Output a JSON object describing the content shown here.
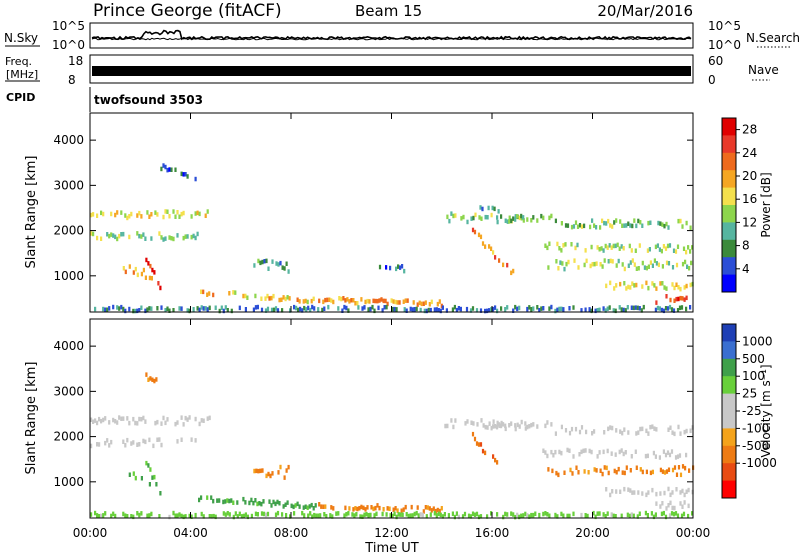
{
  "header": {
    "station": "Prince George (fitACF)",
    "beam": "Beam 15",
    "date": "20/Mar/2016"
  },
  "noise_panel": {
    "left_label": "N.Sky",
    "right_label": "N.Search",
    "left_ticks": [
      "10^5",
      "10^0"
    ],
    "right_ticks": [
      "10^5",
      "10^0"
    ]
  },
  "freq_panel": {
    "left_label_line1": "Freq.",
    "left_label_line2": "[MHz]",
    "right_label": "Nave",
    "left_ticks": [
      "18",
      "8"
    ],
    "right_ticks": [
      "60",
      "0"
    ]
  },
  "cpid": {
    "label": "CPID",
    "program": "twofsound 3503"
  },
  "colors": {
    "power_scale": [
      "#0000ff",
      "#2b4ed6",
      "#3b8a3b",
      "#56b5a0",
      "#8dd54c",
      "#f4e04d",
      "#f5a623",
      "#ee6a1d",
      "#e8392a",
      "#e00000"
    ],
    "velocity_scale": [
      "#1e3fb5",
      "#3a6fd0",
      "#3fa04a",
      "#68cf3a",
      "#c8c8c8",
      "#c8c8c8",
      "#f4a31b",
      "#ee7b13",
      "#e84b12",
      "#ff0000"
    ],
    "ground_scatter": "#c8c8c8"
  },
  "chart_data": [
    {
      "type": "heatmap",
      "title": "Power",
      "xlabel": "Time UT",
      "ylabel": "Slant Range [km]",
      "xlim": [
        0,
        24
      ],
      "ylim": [
        200,
        4600
      ],
      "x_ticks": [
        "00:00",
        "04:00",
        "08:00",
        "12:00",
        "16:00",
        "20:00",
        "00:00"
      ],
      "y_ticks": [
        "1000",
        "2000",
        "3000",
        "4000"
      ],
      "colorbar": {
        "label": "Power [dB]",
        "ticks": [
          "4",
          "8",
          "12",
          "16",
          "20",
          "24",
          "28"
        ],
        "range": [
          0,
          30
        ]
      },
      "features": [
        {
          "t": [
            0.0,
            4.8
          ],
          "r": [
            2350,
            2350
          ],
          "w": 160,
          "v": 16
        },
        {
          "t": [
            0.0,
            4.3
          ],
          "r": [
            1870,
            1870
          ],
          "w": 150,
          "v": 13
        },
        {
          "t": [
            1.3,
            2.5
          ],
          "r": [
            1150,
            1000
          ],
          "w": 220,
          "v": 20
        },
        {
          "t": [
            2.2,
            2.8
          ],
          "r": [
            1400,
            750
          ],
          "w": 120,
          "v": 26
        },
        {
          "t": [
            2.8,
            4.2
          ],
          "r": [
            3400,
            3200
          ],
          "w": 120,
          "v": 6
        },
        {
          "t": [
            4.3,
            9.0
          ],
          "r": [
            650,
            450
          ],
          "w": 100,
          "v": 18
        },
        {
          "t": [
            6.5,
            8.0
          ],
          "r": [
            1250,
            1200
          ],
          "w": 260,
          "v": 9
        },
        {
          "t": [
            9.0,
            14.0
          ],
          "r": [
            480,
            380
          ],
          "w": 110,
          "v": 20
        },
        {
          "t": [
            11.5,
            12.5
          ],
          "r": [
            1150,
            1150
          ],
          "w": 180,
          "v": 6
        },
        {
          "t": [
            14.1,
            17.3
          ],
          "r": [
            2300,
            2250
          ],
          "w": 180,
          "v": 12
        },
        {
          "t": [
            15.2,
            16.8
          ],
          "r": [
            2000,
            1050
          ],
          "w": 170,
          "v": 21
        },
        {
          "t": [
            15.5,
            16.3
          ],
          "r": [
            2550,
            2400
          ],
          "w": 110,
          "v": 8
        },
        {
          "t": [
            16.0,
            18.5
          ],
          "r": [
            2250,
            2300
          ],
          "w": 120,
          "v": 11
        },
        {
          "t": [
            18.5,
            24.0
          ],
          "r": [
            2150,
            2150
          ],
          "w": 170,
          "v": 12
        },
        {
          "t": [
            18.0,
            24.0
          ],
          "r": [
            1650,
            1600
          ],
          "w": 150,
          "v": 14
        },
        {
          "t": [
            18.2,
            24.0
          ],
          "r": [
            1250,
            1250
          ],
          "w": 200,
          "v": 14
        },
        {
          "t": [
            20.5,
            24.0
          ],
          "r": [
            780,
            780
          ],
          "w": 140,
          "v": 17
        },
        {
          "t": [
            22.5,
            24.0
          ],
          "r": [
            480,
            480
          ],
          "w": 150,
          "v": 25
        },
        {
          "t": [
            0.0,
            24.0
          ],
          "r": [
            270,
            270
          ],
          "w": 90,
          "v": 7
        }
      ]
    },
    {
      "type": "heatmap",
      "title": "Velocity",
      "xlabel": "Time UT",
      "ylabel": "Slant Range [km]",
      "xlim": [
        0,
        24
      ],
      "ylim": [
        200,
        4600
      ],
      "x_ticks": [
        "00:00",
        "04:00",
        "08:00",
        "12:00",
        "16:00",
        "20:00",
        "00:00"
      ],
      "y_ticks": [
        "1000",
        "2000",
        "3000",
        "4000"
      ],
      "colorbar": {
        "label": "Velocity [m s^-1]",
        "ticks": [
          "1000",
          "500",
          "100",
          "25",
          "-25",
          "-100",
          "-500",
          "-1000"
        ],
        "range": [
          -1000,
          1000
        ]
      },
      "features": [
        {
          "t": [
            0.0,
            4.8
          ],
          "r": [
            2350,
            2350
          ],
          "w": 160,
          "v": 0,
          "gs": true
        },
        {
          "t": [
            0.0,
            4.3
          ],
          "r": [
            1870,
            1870
          ],
          "w": 150,
          "v": 0,
          "gs": true
        },
        {
          "t": [
            1.3,
            2.5
          ],
          "r": [
            1150,
            1000
          ],
          "w": 220,
          "v": 150
        },
        {
          "t": [
            2.2,
            2.8
          ],
          "r": [
            1400,
            750
          ],
          "w": 120,
          "v": 120
        },
        {
          "t": [
            1.8,
            2.8
          ],
          "r": [
            3400,
            3200
          ],
          "w": 120,
          "v": -120
        },
        {
          "t": [
            4.3,
            9.0
          ],
          "r": [
            650,
            450
          ],
          "w": 100,
          "v": 150
        },
        {
          "t": [
            6.5,
            8.0
          ],
          "r": [
            1250,
            1200
          ],
          "w": 260,
          "v": -150
        },
        {
          "t": [
            9.0,
            14.0
          ],
          "r": [
            480,
            380
          ],
          "w": 110,
          "v": -150
        },
        {
          "t": [
            14.1,
            17.3
          ],
          "r": [
            2300,
            2250
          ],
          "w": 180,
          "v": 0,
          "gs": true
        },
        {
          "t": [
            15.2,
            16.8
          ],
          "r": [
            2000,
            1050
          ],
          "w": 170,
          "v": -420
        },
        {
          "t": [
            16.0,
            18.5
          ],
          "r": [
            2250,
            2300
          ],
          "w": 120,
          "v": 0,
          "gs": true
        },
        {
          "t": [
            18.5,
            24.0
          ],
          "r": [
            2150,
            2150
          ],
          "w": 170,
          "v": 0,
          "gs": true
        },
        {
          "t": [
            18.0,
            24.0
          ],
          "r": [
            1650,
            1600
          ],
          "w": 150,
          "v": 0,
          "gs": true
        },
        {
          "t": [
            18.2,
            24.0
          ],
          "r": [
            1250,
            1250
          ],
          "w": 200,
          "v": -130
        },
        {
          "t": [
            20.5,
            24.0
          ],
          "r": [
            780,
            780
          ],
          "w": 140,
          "v": 0,
          "gs": true
        },
        {
          "t": [
            22.5,
            24.0
          ],
          "r": [
            480,
            480
          ],
          "w": 150,
          "v": 0,
          "gs": true
        },
        {
          "t": [
            0.0,
            24.0
          ],
          "r": [
            270,
            270
          ],
          "w": 90,
          "v": 40
        }
      ]
    }
  ]
}
